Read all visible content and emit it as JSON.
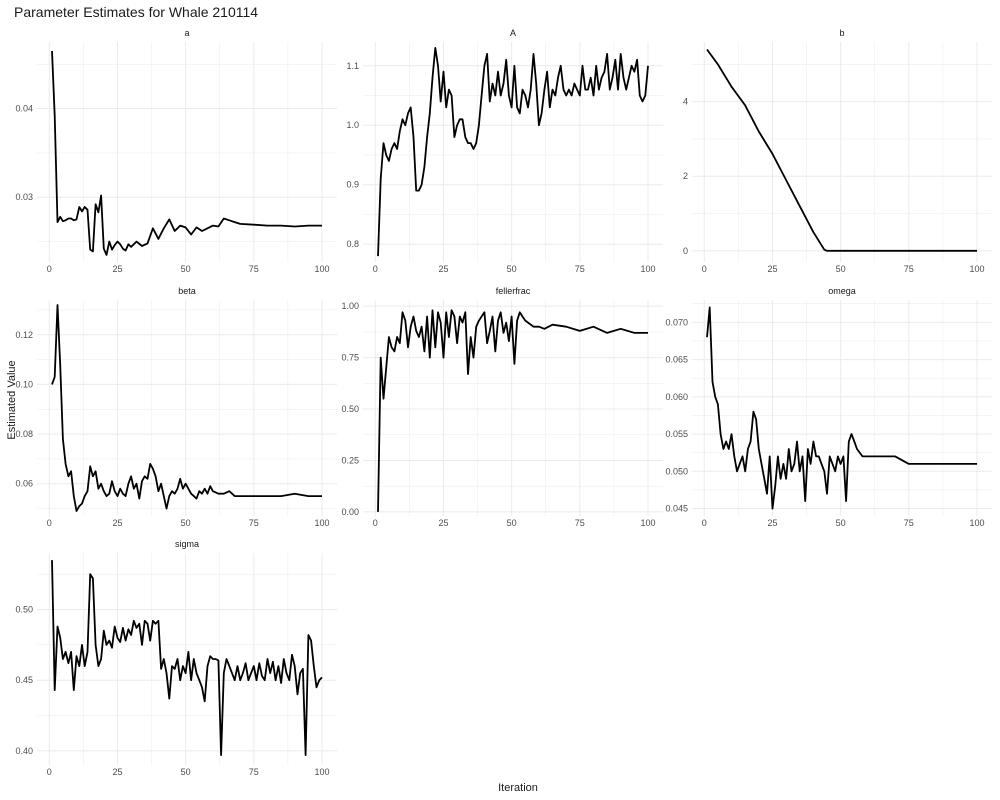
{
  "title": "Parameter Estimates for Whale 210114",
  "xlabel": "Iteration",
  "ylabel": "Estimated Value",
  "chart_data": {
    "type": "line",
    "facet": "wrap",
    "ncol": 3,
    "x_ticks": [
      0,
      25,
      50,
      75,
      100
    ],
    "x_range": [
      1,
      100
    ],
    "line_color": "#000000",
    "grid_color": "#ebebeb",
    "grid": true,
    "panels": [
      {
        "name": "a",
        "y_ticks": [
          0.03,
          0.04
        ],
        "y_tick_labels": [
          "0.03",
          "0.04"
        ],
        "ylim": [
          0.0227,
          0.0475
        ],
        "x": [
          1,
          2,
          3,
          4,
          5,
          6,
          7,
          8,
          9,
          10,
          11,
          12,
          13,
          14,
          15,
          16,
          17,
          18,
          19,
          20,
          21,
          22,
          23,
          24,
          25,
          26,
          27,
          28,
          29,
          30,
          32,
          34,
          36,
          38,
          40,
          42,
          44,
          46,
          48,
          50,
          52,
          54,
          56,
          58,
          60,
          62,
          64,
          66,
          68,
          70,
          75,
          80,
          85,
          90,
          95,
          100
        ],
        "y": [
          0.0465,
          0.0392,
          0.0272,
          0.0278,
          0.0273,
          0.0274,
          0.0276,
          0.0276,
          0.0274,
          0.0275,
          0.0289,
          0.0284,
          0.0289,
          0.0286,
          0.0241,
          0.0239,
          0.0292,
          0.0283,
          0.0302,
          0.0242,
          0.0235,
          0.025,
          0.0241,
          0.0246,
          0.025,
          0.0247,
          0.0242,
          0.024,
          0.0247,
          0.0244,
          0.025,
          0.0245,
          0.0248,
          0.0265,
          0.0253,
          0.0265,
          0.0275,
          0.0262,
          0.0268,
          0.0266,
          0.0258,
          0.0266,
          0.0262,
          0.0265,
          0.0268,
          0.0267,
          0.0276,
          0.0274,
          0.0272,
          0.027,
          0.0269,
          0.0268,
          0.0268,
          0.0267,
          0.0268,
          0.0268
        ]
      },
      {
        "name": "A",
        "y_ticks": [
          0.8,
          0.9,
          1.0,
          1.1
        ],
        "y_tick_labels": [
          "0.8",
          "0.9",
          "1.0",
          "1.1"
        ],
        "ylim": [
          0.77,
          1.14
        ],
        "x": [
          1,
          2,
          3,
          4,
          5,
          6,
          7,
          8,
          9,
          10,
          11,
          12,
          13,
          14,
          15,
          16,
          17,
          18,
          19,
          20,
          21,
          22,
          23,
          24,
          25,
          26,
          27,
          28,
          29,
          30,
          31,
          32,
          33,
          34,
          35,
          36,
          37,
          38,
          39,
          40,
          41,
          42,
          43,
          44,
          45,
          46,
          47,
          48,
          49,
          50,
          51,
          52,
          53,
          54,
          55,
          56,
          57,
          58,
          59,
          60,
          61,
          62,
          63,
          64,
          65,
          66,
          67,
          68,
          69,
          70,
          71,
          72,
          73,
          74,
          75,
          76,
          77,
          78,
          79,
          80,
          81,
          82,
          83,
          84,
          85,
          86,
          87,
          88,
          89,
          90,
          91,
          92,
          93,
          94,
          95,
          96,
          97,
          98,
          99,
          100
        ],
        "y": [
          0.78,
          0.91,
          0.97,
          0.95,
          0.94,
          0.96,
          0.97,
          0.96,
          0.99,
          1.01,
          1.0,
          1.02,
          1.03,
          0.98,
          0.89,
          0.89,
          0.9,
          0.93,
          0.98,
          1.02,
          1.08,
          1.13,
          1.1,
          1.04,
          1.09,
          1.03,
          1.06,
          1.05,
          0.98,
          1.0,
          1.01,
          1.01,
          0.98,
          0.97,
          0.97,
          0.96,
          0.97,
          1.0,
          1.05,
          1.1,
          1.12,
          1.04,
          1.07,
          1.05,
          1.09,
          1.05,
          1.07,
          1.11,
          1.05,
          1.03,
          1.1,
          1.03,
          1.02,
          1.06,
          1.05,
          1.03,
          1.06,
          1.12,
          1.07,
          1.0,
          1.02,
          1.06,
          1.09,
          1.03,
          1.06,
          1.05,
          1.08,
          1.1,
          1.06,
          1.05,
          1.06,
          1.05,
          1.07,
          1.06,
          1.05,
          1.1,
          1.06,
          1.06,
          1.08,
          1.05,
          1.1,
          1.06,
          1.08,
          1.09,
          1.12,
          1.06,
          1.08,
          1.11,
          1.06,
          1.12,
          1.08,
          1.06,
          1.08,
          1.1,
          1.09,
          1.11,
          1.05,
          1.04,
          1.05,
          1.1
        ]
      },
      {
        "name": "b",
        "y_ticks": [
          0,
          2,
          4
        ],
        "y_tick_labels": [
          "0",
          "2",
          "4"
        ],
        "ylim": [
          -0.3,
          5.6
        ],
        "x": [
          1,
          5,
          10,
          15,
          20,
          25,
          30,
          35,
          40,
          44,
          45,
          100
        ],
        "y": [
          5.4,
          5.0,
          4.4,
          3.9,
          3.2,
          2.6,
          1.9,
          1.2,
          0.5,
          0.03,
          0.0,
          0.0
        ]
      },
      {
        "name": "beta",
        "y_ticks": [
          0.06,
          0.08,
          0.1,
          0.12
        ],
        "y_tick_labels": [
          "0.06",
          "0.08",
          "0.10",
          "0.12"
        ],
        "ylim": [
          0.047,
          0.134
        ],
        "x": [
          1,
          2,
          3,
          4,
          5,
          6,
          7,
          8,
          9,
          10,
          11,
          12,
          13,
          14,
          15,
          16,
          17,
          18,
          19,
          20,
          21,
          22,
          23,
          24,
          25,
          26,
          27,
          28,
          29,
          30,
          31,
          32,
          33,
          34,
          35,
          36,
          37,
          38,
          39,
          40,
          41,
          42,
          43,
          44,
          45,
          46,
          47,
          48,
          49,
          50,
          51,
          52,
          53,
          54,
          55,
          56,
          57,
          58,
          59,
          60,
          62,
          64,
          66,
          68,
          70,
          75,
          80,
          85,
          90,
          95,
          100
        ],
        "y": [
          0.1,
          0.103,
          0.132,
          0.108,
          0.078,
          0.068,
          0.063,
          0.065,
          0.055,
          0.049,
          0.051,
          0.052,
          0.055,
          0.057,
          0.067,
          0.063,
          0.065,
          0.058,
          0.06,
          0.057,
          0.055,
          0.056,
          0.061,
          0.057,
          0.055,
          0.058,
          0.056,
          0.055,
          0.06,
          0.063,
          0.058,
          0.06,
          0.054,
          0.061,
          0.063,
          0.062,
          0.068,
          0.066,
          0.063,
          0.057,
          0.06,
          0.055,
          0.05,
          0.055,
          0.057,
          0.056,
          0.058,
          0.062,
          0.058,
          0.06,
          0.058,
          0.056,
          0.055,
          0.054,
          0.057,
          0.056,
          0.058,
          0.056,
          0.059,
          0.057,
          0.056,
          0.056,
          0.057,
          0.055,
          0.055,
          0.055,
          0.055,
          0.055,
          0.056,
          0.055,
          0.055
        ]
      },
      {
        "name": "fellerfrac",
        "y_ticks": [
          0,
          0.25,
          0.5,
          0.75,
          1.0
        ],
        "y_tick_labels": [
          "0.00",
          "0.25",
          "0.50",
          "0.75",
          "1.00"
        ],
        "ylim": [
          -0.02,
          1.03
        ],
        "x": [
          1,
          2,
          3,
          4,
          5,
          6,
          7,
          8,
          9,
          10,
          11,
          12,
          13,
          14,
          15,
          16,
          17,
          18,
          19,
          20,
          21,
          22,
          23,
          24,
          25,
          26,
          27,
          28,
          29,
          30,
          31,
          32,
          33,
          34,
          35,
          36,
          37,
          38,
          39,
          40,
          41,
          42,
          43,
          44,
          45,
          46,
          47,
          48,
          49,
          50,
          51,
          52,
          53,
          54,
          55,
          56,
          58,
          60,
          62,
          65,
          70,
          75,
          80,
          85,
          90,
          95,
          100
        ],
        "y": [
          0.0,
          0.75,
          0.55,
          0.7,
          0.85,
          0.8,
          0.78,
          0.85,
          0.82,
          0.97,
          0.93,
          0.8,
          0.9,
          0.95,
          0.88,
          0.85,
          0.9,
          0.78,
          0.95,
          0.75,
          0.98,
          0.8,
          0.97,
          0.92,
          0.75,
          0.97,
          0.85,
          0.98,
          0.95,
          0.82,
          0.95,
          0.92,
          0.97,
          0.67,
          0.85,
          0.75,
          0.9,
          0.93,
          0.95,
          0.97,
          0.82,
          0.88,
          0.95,
          0.78,
          0.93,
          0.97,
          0.87,
          0.92,
          0.83,
          0.95,
          0.72,
          0.93,
          0.97,
          0.95,
          0.93,
          0.92,
          0.9,
          0.9,
          0.89,
          0.91,
          0.9,
          0.88,
          0.9,
          0.87,
          0.89,
          0.87,
          0.87
        ]
      },
      {
        "name": "omega",
        "y_ticks": [
          0.045,
          0.05,
          0.055,
          0.06,
          0.065,
          0.07
        ],
        "y_tick_labels": [
          "0.045",
          "0.050",
          "0.055",
          "0.060",
          "0.065",
          "0.070"
        ],
        "ylim": [
          0.044,
          0.073
        ],
        "x": [
          1,
          2,
          3,
          4,
          5,
          6,
          7,
          8,
          9,
          10,
          11,
          12,
          13,
          14,
          15,
          16,
          17,
          18,
          19,
          20,
          21,
          22,
          23,
          24,
          25,
          26,
          27,
          28,
          29,
          30,
          31,
          32,
          33,
          34,
          35,
          36,
          37,
          38,
          39,
          40,
          41,
          42,
          43,
          44,
          45,
          46,
          47,
          48,
          49,
          50,
          51,
          52,
          53,
          54,
          55,
          56,
          58,
          60,
          62,
          65,
          70,
          75,
          80,
          85,
          90,
          95,
          100
        ],
        "y": [
          0.068,
          0.072,
          0.062,
          0.06,
          0.059,
          0.055,
          0.053,
          0.054,
          0.053,
          0.055,
          0.052,
          0.05,
          0.051,
          0.052,
          0.05,
          0.053,
          0.054,
          0.058,
          0.057,
          0.053,
          0.051,
          0.049,
          0.047,
          0.052,
          0.045,
          0.048,
          0.052,
          0.049,
          0.051,
          0.049,
          0.053,
          0.05,
          0.051,
          0.054,
          0.05,
          0.052,
          0.046,
          0.053,
          0.051,
          0.054,
          0.052,
          0.052,
          0.051,
          0.05,
          0.047,
          0.052,
          0.051,
          0.05,
          0.052,
          0.051,
          0.052,
          0.046,
          0.054,
          0.055,
          0.054,
          0.053,
          0.052,
          0.052,
          0.052,
          0.052,
          0.052,
          0.051,
          0.051,
          0.051,
          0.051,
          0.051,
          0.051
        ]
      },
      {
        "name": "sigma",
        "y_ticks": [
          0.4,
          0.45,
          0.5
        ],
        "y_tick_labels": [
          "0.40",
          "0.45",
          "0.50"
        ],
        "ylim": [
          0.39,
          0.54
        ],
        "x": [
          1,
          2,
          3,
          4,
          5,
          6,
          7,
          8,
          9,
          10,
          11,
          12,
          13,
          14,
          15,
          16,
          17,
          18,
          19,
          20,
          21,
          22,
          23,
          24,
          25,
          26,
          27,
          28,
          29,
          30,
          31,
          32,
          33,
          34,
          35,
          36,
          37,
          38,
          39,
          40,
          41,
          42,
          43,
          44,
          45,
          46,
          47,
          48,
          49,
          50,
          51,
          52,
          53,
          54,
          55,
          56,
          57,
          58,
          59,
          60,
          61,
          62,
          63,
          64,
          65,
          66,
          67,
          68,
          69,
          70,
          71,
          72,
          73,
          74,
          75,
          76,
          77,
          78,
          79,
          80,
          81,
          82,
          83,
          84,
          85,
          86,
          87,
          88,
          89,
          90,
          91,
          92,
          93,
          94,
          95,
          96,
          97,
          98,
          99,
          100
        ],
        "y": [
          0.535,
          0.443,
          0.488,
          0.48,
          0.465,
          0.47,
          0.462,
          0.47,
          0.443,
          0.467,
          0.46,
          0.475,
          0.46,
          0.47,
          0.525,
          0.522,
          0.475,
          0.46,
          0.465,
          0.485,
          0.475,
          0.478,
          0.473,
          0.488,
          0.48,
          0.477,
          0.487,
          0.478,
          0.486,
          0.482,
          0.492,
          0.487,
          0.49,
          0.475,
          0.492,
          0.49,
          0.478,
          0.492,
          0.49,
          0.492,
          0.458,
          0.465,
          0.455,
          0.437,
          0.46,
          0.458,
          0.465,
          0.45,
          0.46,
          0.455,
          0.47,
          0.45,
          0.465,
          0.455,
          0.45,
          0.445,
          0.435,
          0.46,
          0.467,
          0.465,
          0.465,
          0.464,
          0.397,
          0.455,
          0.465,
          0.46,
          0.455,
          0.45,
          0.46,
          0.45,
          0.455,
          0.462,
          0.45,
          0.455,
          0.46,
          0.45,
          0.462,
          0.453,
          0.45,
          0.465,
          0.455,
          0.463,
          0.45,
          0.46,
          0.448,
          0.465,
          0.455,
          0.45,
          0.468,
          0.46,
          0.44,
          0.455,
          0.458,
          0.397,
          0.482,
          0.478,
          0.46,
          0.445,
          0.45,
          0.452
        ]
      }
    ]
  }
}
